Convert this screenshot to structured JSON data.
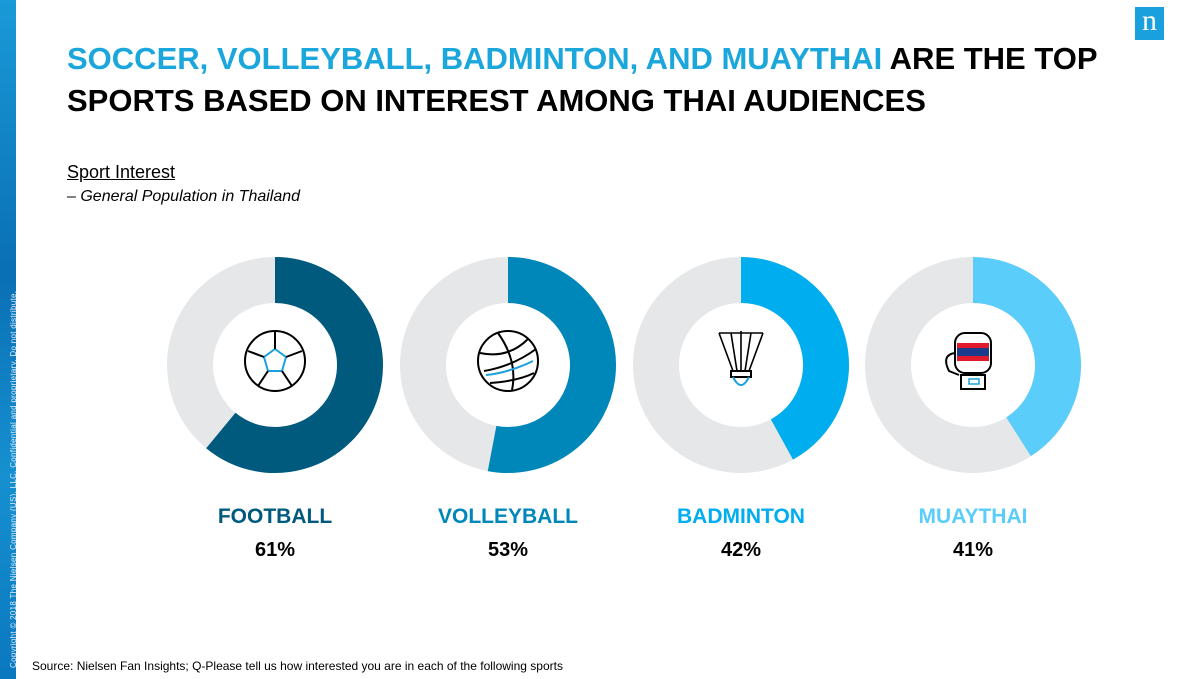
{
  "header": {
    "title_highlight": "SOCCER, VOLLEYBALL, BADMINTON, AND MUAYTHAI",
    "title_rest": " ARE THE TOP SPORTS BASED ON INTEREST AMONG THAI AUDIENCES",
    "logo": "n"
  },
  "sidebar": {
    "copyright": "Copyright © 2018 The Nielsen Company (US), LLC. Confidential and proprietary. Do not distribute."
  },
  "chart_data": {
    "type": "pie",
    "variant": "donut",
    "title": "Sport Interest",
    "subtitle": "– General Population in Thailand",
    "categories": [
      "FOOTBALL",
      "VOLLEYBALL",
      "BADMINTON",
      "MUAYTHAI"
    ],
    "labels": [
      "61%",
      "53%",
      "42%",
      "41%"
    ],
    "values": [
      61,
      53,
      42,
      41
    ],
    "icons": [
      "soccer-ball-icon",
      "volleyball-icon",
      "shuttlecock-icon",
      "boxing-glove-icon"
    ],
    "colors": [
      "#005a7d",
      "#0087b9",
      "#00adef",
      "#5bcdfb"
    ],
    "remainder_color": "#e6e7e8"
  },
  "footer": {
    "source": "Source: Nielsen Fan Insights; Q-Please tell us how interested you are in each of the following sports"
  }
}
